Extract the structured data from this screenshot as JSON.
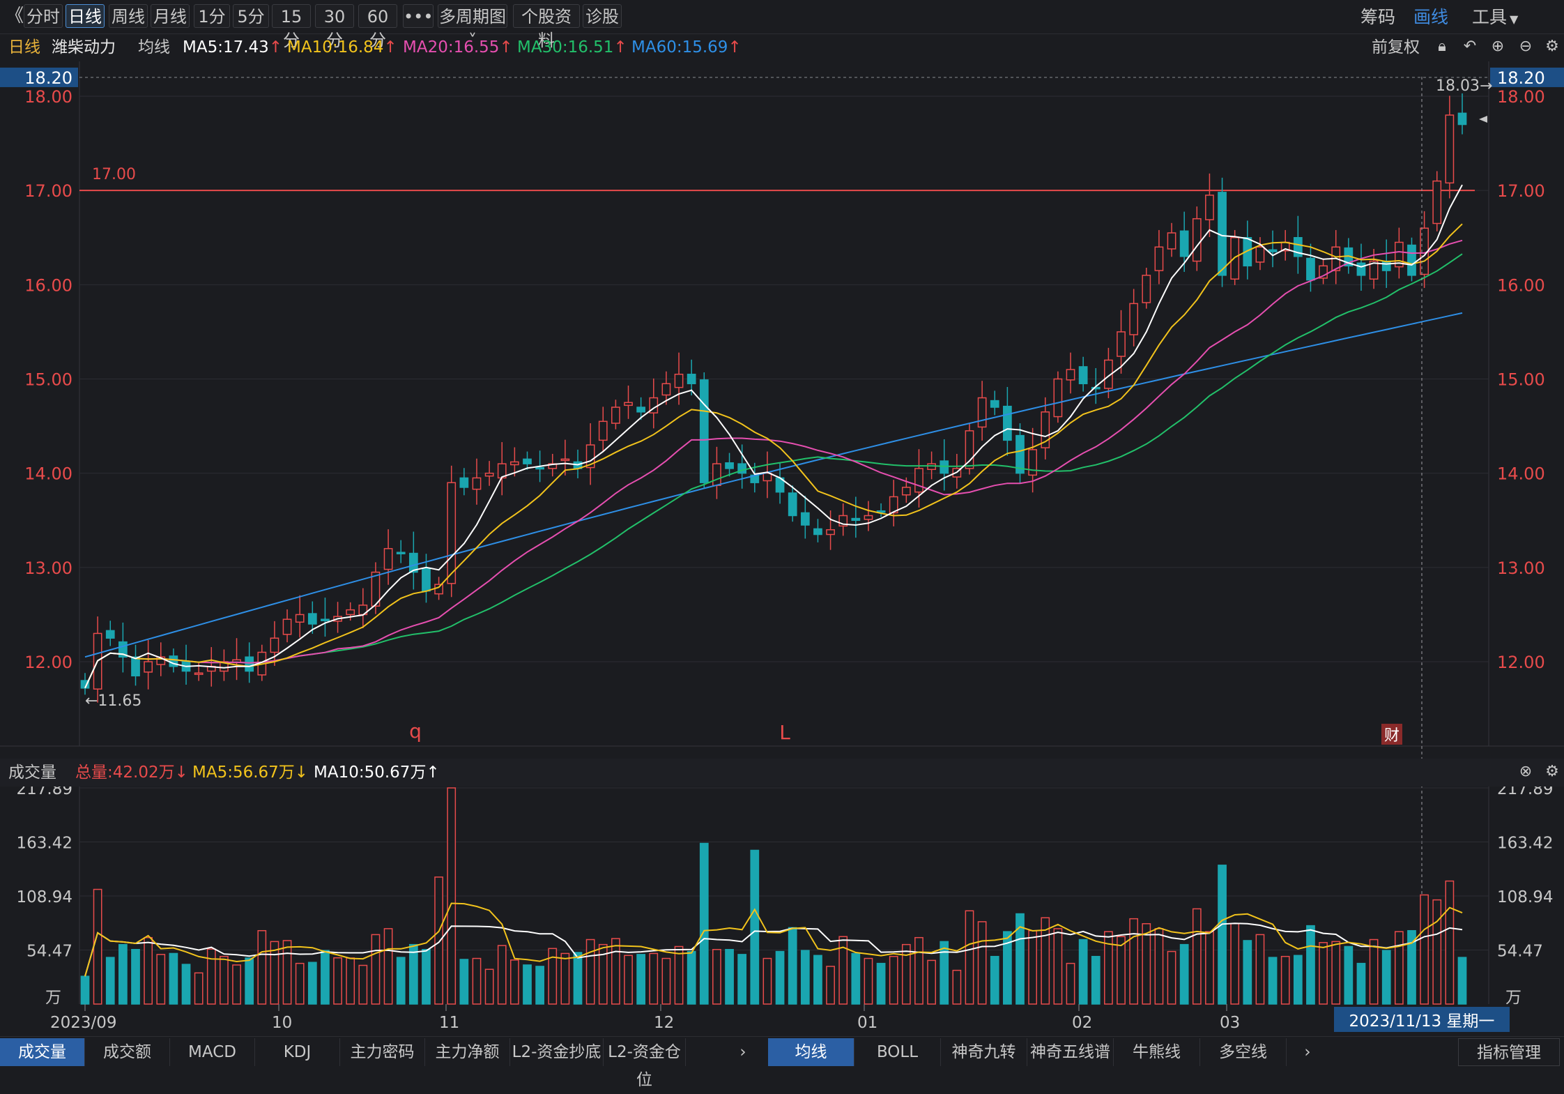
{
  "toolbar": {
    "back": "《",
    "buttons": [
      "分时",
      "日线",
      "周线",
      "月线",
      "1分",
      "5分",
      "15分",
      "30分",
      "60分",
      "•••",
      "多周期图 ˅",
      "个股资料",
      "诊股"
    ],
    "active_index": 1,
    "right": {
      "chip": "筹码",
      "draw": "画线",
      "tools": "工具"
    }
  },
  "info": {
    "period": "日线",
    "stock": "潍柴动力",
    "ma_label": "均线",
    "ma5": "MA5:17.43",
    "ma10": "MA10:16.84",
    "ma20": "MA20:16.55",
    "ma30": "MA30:16.51",
    "ma60": "MA60:15.69",
    "adjust": "前复权"
  },
  "colors": {
    "up": "#e84b4b",
    "down": "#1aa6b0",
    "ma5": "#ffffff",
    "ma10": "#f2c31c",
    "ma20": "#e64fb0",
    "ma30": "#22c06a",
    "ma60": "#2e8fe6",
    "accent": "#2b5fa4"
  },
  "price_axis": {
    "labels": [
      "18.00",
      "17.00",
      "16.00",
      "15.00",
      "14.00",
      "13.00",
      "12.00"
    ],
    "top_marker": "18.20"
  },
  "annotations": {
    "line_17": "17.00",
    "high_label": "18.03→",
    "low_label": "←11.65",
    "q_mark": "q",
    "l_mark": "L",
    "cai": "财"
  },
  "volume": {
    "title": "成交量",
    "total": "总量:42.02万↓",
    "ma5": "MA5:56.67万↓",
    "ma10": "MA10:50.67万↑",
    "axis": [
      "217.89",
      "163.42",
      "108.94",
      "54.47"
    ],
    "unit": "万"
  },
  "date_axis": [
    "2023/09",
    "10",
    "11",
    "12",
    "01",
    "02",
    "03"
  ],
  "cursor_date": "2023/11/13 星期一",
  "bottom_tabs_left": [
    "成交量",
    "成交额",
    "MACD",
    "KDJ",
    "主力密码",
    "主力净额",
    "L2-资金抄底",
    "L2-资金仓位"
  ],
  "bottom_tabs_right": [
    "均线",
    "BOLL",
    "神奇九转",
    "神奇五线谱",
    "牛熊线",
    "多空线"
  ],
  "indicator_mgmt": "指标管理",
  "chart_data": {
    "type": "candlestick",
    "y_range": [
      11.4,
      18.2
    ],
    "volume_range": [
      0,
      217.89
    ],
    "volume_unit": "万",
    "series": [
      {
        "name": "MA5",
        "color": "#ffffff"
      },
      {
        "name": "MA10",
        "color": "#f2c31c"
      },
      {
        "name": "MA20",
        "color": "#e64fb0"
      },
      {
        "name": "MA30",
        "color": "#22c06a"
      },
      {
        "name": "MA60",
        "color": "#2e8fe6"
      }
    ],
    "horizontal_line": 17.0,
    "high": 18.03,
    "low": 11.65,
    "closes": [
      11.72,
      12.3,
      12.25,
      12.05,
      11.85,
      12.0,
      12.05,
      11.95,
      11.9,
      11.88,
      11.95,
      12.0,
      12.02,
      11.9,
      12.1,
      12.25,
      12.45,
      12.5,
      12.4,
      12.45,
      12.48,
      12.55,
      12.6,
      12.95,
      13.2,
      13.15,
      12.95,
      12.75,
      12.82,
      13.9,
      13.85,
      13.95,
      14.0,
      14.1,
      14.12,
      14.1,
      14.05,
      14.1,
      14.15,
      14.05,
      14.3,
      14.55,
      14.7,
      14.75,
      14.65,
      14.8,
      14.95,
      15.05,
      14.95,
      13.9,
      14.1,
      14.05,
      14.0,
      13.9,
      14.0,
      13.8,
      13.55,
      13.45,
      13.35,
      13.4,
      13.55,
      13.5,
      13.55,
      13.6,
      13.75,
      13.85,
      14.05,
      14.1,
      14.0,
      14.05,
      14.45,
      14.8,
      14.7,
      14.35,
      14.0,
      14.25,
      14.65,
      15.0,
      15.1,
      14.95,
      14.9,
      15.2,
      15.5,
      15.8,
      16.1,
      16.4,
      16.55,
      16.3,
      16.7,
      16.95,
      16.1,
      16.5,
      16.2,
      16.4,
      16.35,
      16.45,
      16.3,
      16.05,
      16.2,
      16.4,
      16.2,
      16.1,
      16.25,
      16.15,
      16.45,
      16.1,
      16.6,
      17.1,
      17.8,
      17.7
    ]
  }
}
